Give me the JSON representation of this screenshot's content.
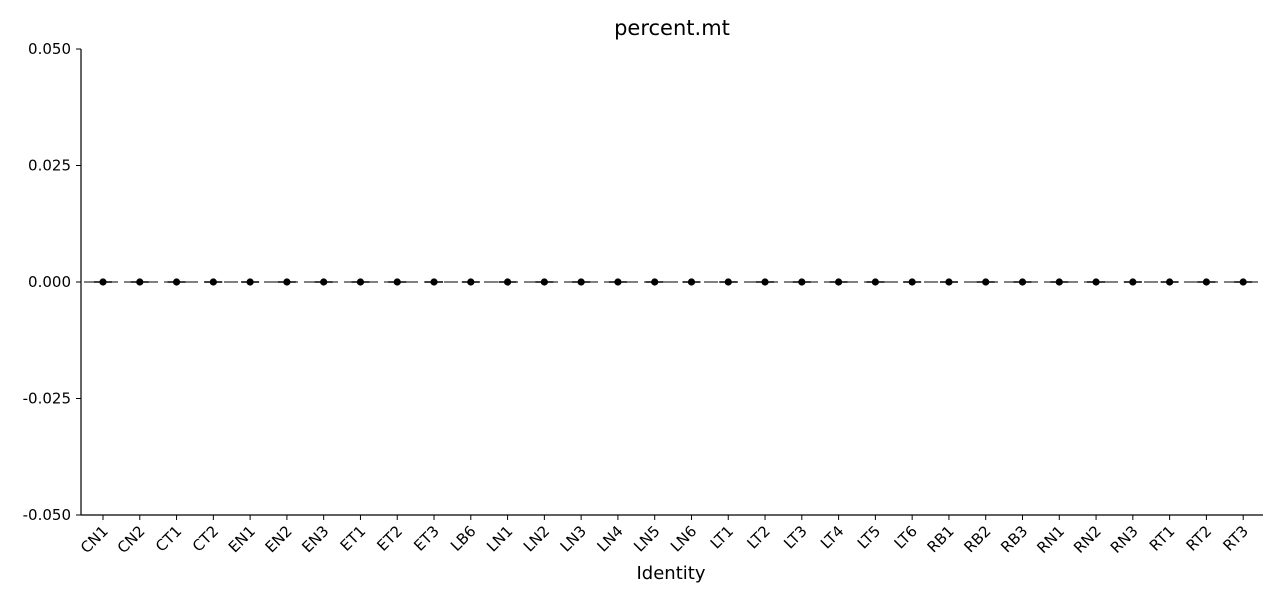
{
  "chart_data": {
    "type": "scatter",
    "title": "percent.mt",
    "xlabel": "Identity",
    "ylabel": "",
    "ylim": [
      -0.05,
      0.05
    ],
    "yticks": [
      "-0.050",
      "-0.025",
      "0.000",
      "0.025",
      "0.050"
    ],
    "ytick_values": [
      -0.05,
      -0.025,
      0,
      0.025,
      0.05
    ],
    "categories": [
      "CN1",
      "CN2",
      "CT1",
      "CT2",
      "EN1",
      "EN2",
      "EN3",
      "ET1",
      "ET2",
      "ET3",
      "LB6",
      "LN1",
      "LN2",
      "LN3",
      "LN4",
      "LN5",
      "LN6",
      "LT1",
      "LT2",
      "LT3",
      "LT4",
      "LT5",
      "LT6",
      "RB1",
      "RB2",
      "RB3",
      "RN1",
      "RN2",
      "RN3",
      "RT1",
      "RT2",
      "RT3"
    ],
    "values": [
      0,
      0,
      0,
      0,
      0,
      0,
      0,
      0,
      0,
      0,
      0,
      0,
      0,
      0,
      0,
      0,
      0,
      0,
      0,
      0,
      0,
      0,
      0,
      0,
      0,
      0,
      0,
      0,
      0,
      0,
      0,
      0
    ],
    "reference_line": 0,
    "grid": false,
    "point_color": "#000000"
  }
}
